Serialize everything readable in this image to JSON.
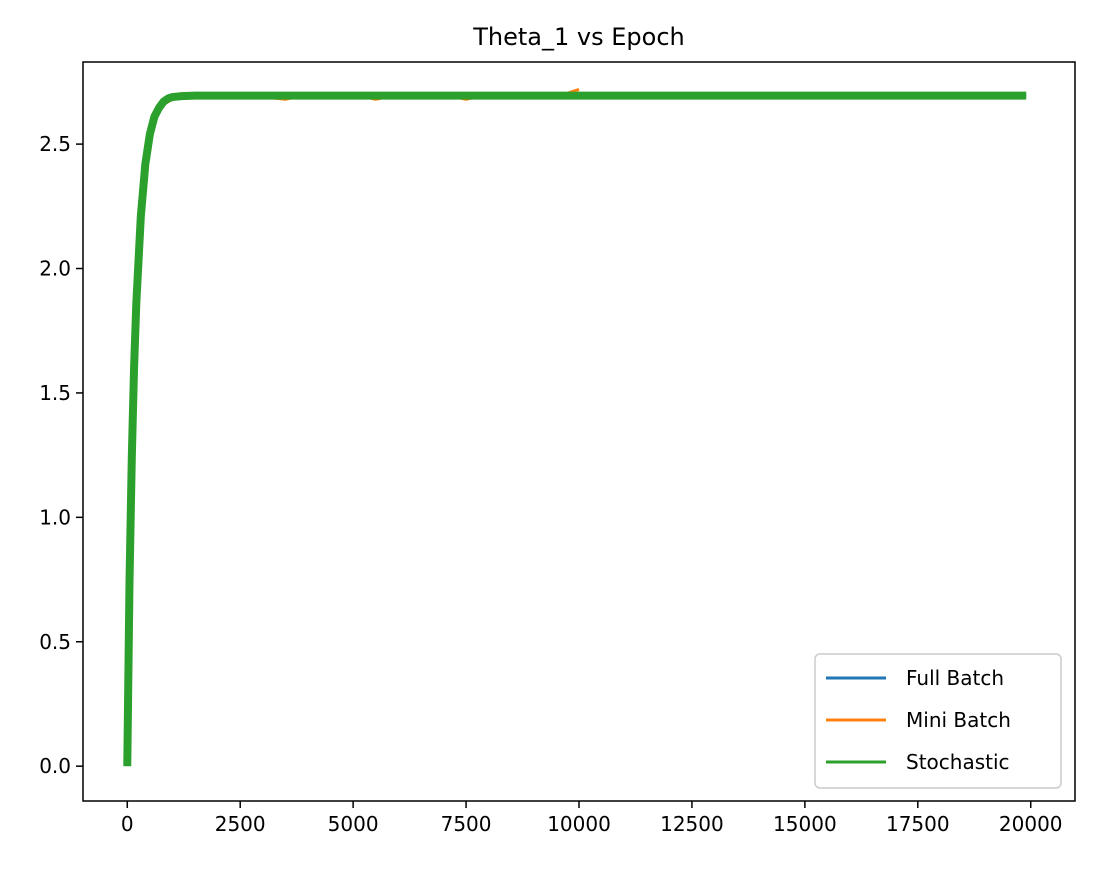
{
  "chart_data": {
    "type": "line",
    "title": "Theta_1 vs Epoch",
    "xlabel": "",
    "ylabel": "",
    "xlim": [
      -980,
      20980
    ],
    "ylim": [
      -0.14,
      2.83
    ],
    "x_ticks": [
      0,
      2500,
      5000,
      7500,
      10000,
      12500,
      15000,
      17500,
      20000
    ],
    "x_tick_labels": [
      "0",
      "2500",
      "5000",
      "7500",
      "10000",
      "12500",
      "15000",
      "17500",
      "20000"
    ],
    "y_ticks": [
      0.0,
      0.5,
      1.0,
      1.5,
      2.0,
      2.5
    ],
    "y_tick_labels": [
      "0.0",
      "0.5",
      "1.0",
      "1.5",
      "2.0",
      "2.5"
    ],
    "grid": false,
    "legend_position": "lower-right",
    "series": [
      {
        "name": "Full Batch",
        "color": "#1f77b4",
        "x": [
          0,
          50,
          100,
          150,
          200,
          300,
          400,
          500,
          600,
          700,
          800,
          900,
          1000,
          1200,
          1500,
          2000,
          3000,
          5000,
          7500,
          10000,
          12500,
          15000,
          17500,
          19900
        ],
        "y": [
          0.0,
          0.75,
          1.23,
          1.59,
          1.85,
          2.2,
          2.41,
          2.53,
          2.6,
          2.64,
          2.665,
          2.68,
          2.687,
          2.692,
          2.694,
          2.695,
          2.695,
          2.695,
          2.695,
          2.695,
          2.695,
          2.695,
          2.695,
          2.695
        ]
      },
      {
        "name": "Mini Batch",
        "color": "#ff7f0e",
        "x": [
          0,
          50,
          100,
          150,
          200,
          300,
          400,
          500,
          600,
          700,
          800,
          900,
          1000,
          1200,
          1500,
          2000,
          2500,
          3000,
          3500,
          4000,
          4500,
          5000,
          5500,
          6000,
          6500,
          7000,
          7500,
          8000,
          8500,
          9000,
          9500,
          10000
        ],
        "y": [
          0.0,
          0.74,
          1.22,
          1.58,
          1.84,
          2.19,
          2.4,
          2.52,
          2.59,
          2.63,
          2.66,
          2.67,
          2.68,
          2.69,
          2.69,
          2.69,
          2.7,
          2.69,
          2.68,
          2.7,
          2.69,
          2.7,
          2.68,
          2.7,
          2.69,
          2.7,
          2.68,
          2.7,
          2.69,
          2.7,
          2.69,
          2.72
        ]
      },
      {
        "name": "Stochastic",
        "color": "#2ca02c",
        "x": [
          0,
          50,
          100,
          150,
          200,
          300,
          400,
          500,
          600,
          700,
          800,
          900,
          1000,
          1200,
          1500,
          2000,
          3000,
          5000,
          7500,
          10000,
          12500,
          15000,
          17500,
          19900
        ],
        "y": [
          0.0,
          0.75,
          1.24,
          1.6,
          1.86,
          2.21,
          2.42,
          2.54,
          2.61,
          2.645,
          2.67,
          2.683,
          2.689,
          2.693,
          2.695,
          2.695,
          2.695,
          2.695,
          2.695,
          2.695,
          2.695,
          2.695,
          2.695,
          2.695
        ]
      }
    ]
  }
}
